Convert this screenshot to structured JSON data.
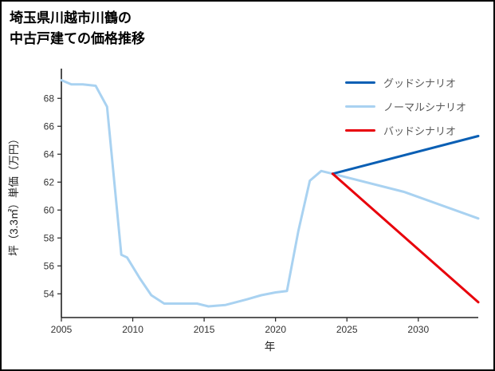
{
  "title": {
    "line1": "埼玉県川越市川鶴の",
    "line2": "中古戸建ての価格推移"
  },
  "chart_data": {
    "type": "line",
    "title": "埼玉県川越市川鶴の中古戸建ての価格推移",
    "xlabel": "年",
    "ylabel": "坪（3.3㎡）単価（万円）",
    "xlim": [
      2005,
      2034.2
    ],
    "ylim": [
      52.3,
      69.9
    ],
    "xticks": [
      2005,
      2010,
      2015,
      2020,
      2025,
      2030
    ],
    "yticks": [
      54,
      56,
      58,
      60,
      62,
      64,
      66,
      68
    ],
    "grid": false,
    "legend_position": "top-right",
    "axis_color": "#222222",
    "series": [
      {
        "name": "グッドシナリオ",
        "color": "#0a5fb4",
        "width": 3,
        "x": [
          2024,
          2034.2
        ],
        "y": [
          62.6,
          65.3
        ]
      },
      {
        "name": "ノーマルシナリオ",
        "color": "#a9d2f1",
        "width": 3,
        "x": [
          2005,
          2005.7,
          2006.5,
          2007.4,
          2008.2,
          2009.2,
          2009.6,
          2010.5,
          2011.3,
          2012.2,
          2013.5,
          2014.5,
          2015.3,
          2016.5,
          2018,
          2019,
          2020,
          2020.8,
          2021.6,
          2022.4,
          2023.2,
          2024,
          2029,
          2034.2
        ],
        "y": [
          69.3,
          69.0,
          69.0,
          68.9,
          67.4,
          56.8,
          56.6,
          55.1,
          53.9,
          53.3,
          53.3,
          53.3,
          53.1,
          53.2,
          53.6,
          53.9,
          54.1,
          54.2,
          58.5,
          62.1,
          62.8,
          62.6,
          61.3,
          59.4
        ]
      },
      {
        "name": "バッドシナリオ",
        "color": "#e8000b",
        "width": 3,
        "x": [
          2024,
          2034.2
        ],
        "y": [
          62.6,
          53.4
        ]
      }
    ]
  }
}
